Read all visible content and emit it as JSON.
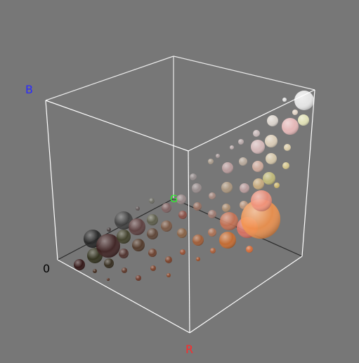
{
  "axes": {
    "r_label": "R",
    "b_label": "B",
    "g_label": "G",
    "origin_label": "0"
  },
  "colors": {
    "background": "#777777",
    "cube_edges": "#ffffff",
    "axis_lines": "#222222",
    "r_label": "#ff2a2a",
    "b_label": "#2a2aff",
    "g_label": "#28ff28",
    "origin_label": "#000000"
  }
}
